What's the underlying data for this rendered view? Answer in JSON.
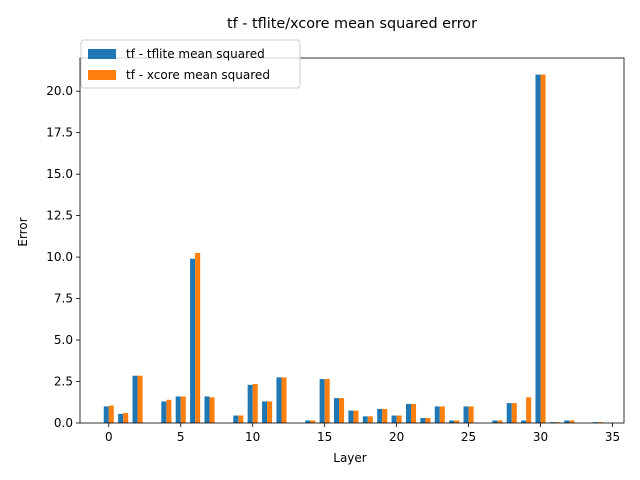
{
  "chart_data": {
    "type": "bar",
    "title": "tf - tflite/xcore mean squared error",
    "xlabel": "Layer",
    "ylabel": "Error",
    "xlim": [
      -2.0,
      35.8
    ],
    "ylim": [
      0,
      22.0
    ],
    "xticks": [
      0,
      5,
      10,
      15,
      20,
      25,
      30,
      35
    ],
    "yticks": [
      0.0,
      2.5,
      5.0,
      7.5,
      10.0,
      12.5,
      15.0,
      17.5,
      20.0
    ],
    "ytick_format": "0.0",
    "grid": false,
    "legend_position": "upper-left",
    "x": [
      0,
      1,
      2,
      3,
      4,
      5,
      6,
      7,
      8,
      9,
      10,
      11,
      12,
      13,
      14,
      15,
      16,
      17,
      18,
      19,
      20,
      21,
      22,
      23,
      24,
      25,
      26,
      27,
      28,
      29,
      30,
      31,
      32,
      33,
      34
    ],
    "series": [
      {
        "name": "tf - tflite mean squared",
        "color": "#1f77b4",
        "values": [
          1.0,
          0.55,
          2.85,
          0,
          1.3,
          1.6,
          9.9,
          1.6,
          0,
          0.45,
          2.3,
          1.3,
          2.75,
          0,
          0.15,
          2.65,
          1.5,
          0.75,
          0.4,
          0.85,
          0.45,
          1.15,
          0.3,
          1.0,
          0.15,
          1.0,
          0,
          0.15,
          1.2,
          0.15,
          21.0,
          0.05,
          0.15,
          0,
          0.05
        ]
      },
      {
        "name": "tf - xcore mean squared",
        "color": "#ff7f0e",
        "values": [
          1.05,
          0.6,
          2.85,
          0,
          1.4,
          1.6,
          10.25,
          1.55,
          0,
          0.45,
          2.35,
          1.3,
          2.75,
          0,
          0.15,
          2.65,
          1.5,
          0.75,
          0.4,
          0.85,
          0.45,
          1.15,
          0.3,
          1.0,
          0.15,
          1.0,
          0,
          0.15,
          1.2,
          1.55,
          21.0,
          0.05,
          0.15,
          0,
          0.05
        ]
      }
    ]
  }
}
